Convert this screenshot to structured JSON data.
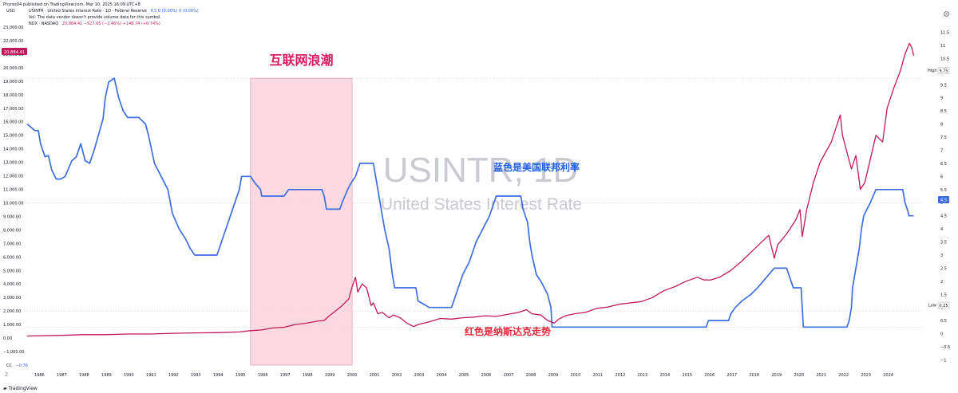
{
  "header": {
    "publisher": "Phyres04 published on TradingView.com, Mar 10, 2025 16:09 UTC+8"
  },
  "legend": {
    "currency": "USD",
    "usintr_title": "USINTR · United States Interest Rate · 1D · Federal Reserve",
    "usintr_values": "4.5  0 (0.00%)  0 (0.00%)",
    "vol_note": "Vol: The data vendor doesn't provide volume data for this symbol.",
    "ndx_title": "NDX · NASDAQ",
    "ndx_values": "20,884.41  −527.05 (−2.46%)  +148.74 (+0.74%)"
  },
  "cc_label": "CC",
  "cc_value": "−0.76",
  "tz_label": "Z",
  "footer_brand": "TradingView",
  "watermark": {
    "symbol": "USINTR, 1D",
    "description": "United States Interest Rate"
  },
  "annotations": {
    "bubble": "互联网浪潮",
    "blue_note": "蓝色是美国联邦利率",
    "red_note": "红色是纳斯达克走势"
  },
  "price_tags": {
    "ndx_last": "20,884.41",
    "high_label": "High",
    "high_value": "9.75",
    "rate_last": "4.5",
    "low_label": "Low",
    "low_value": "0.25"
  },
  "colors": {
    "rate": "#3d6fe0",
    "ndx": "#c2185b",
    "bubble_fill": "#f9d4da",
    "bubble_text": "#d81b60",
    "blue_note": "#1f5fe0",
    "red_note": "#e0283a",
    "watermark": "#c9cbd1"
  },
  "chart_data": {
    "type": "line",
    "x_range": [
      1985.5,
      2025.6
    ],
    "x_ticks": [
      1986,
      1987,
      1988,
      1989,
      1990,
      1991,
      1992,
      1993,
      1994,
      1995,
      1996,
      1997,
      1998,
      1999,
      2000,
      2001,
      2002,
      2003,
      2004,
      2005,
      2006,
      2007,
      2008,
      2009,
      2010,
      2011,
      2012,
      2013,
      2014,
      2015,
      2016,
      2017,
      2018,
      2019,
      2020,
      2021,
      2022,
      2023,
      2024
    ],
    "left_axis": {
      "range": [
        -2000,
        23000
      ],
      "ticks": [
        23000,
        22000,
        21000,
        20000,
        19000,
        18000,
        17000,
        16000,
        15000,
        14000,
        13000,
        12000,
        11000,
        10000,
        9000,
        8000,
        7000,
        6000,
        5000,
        4000,
        3000,
        2000,
        1000,
        0,
        -1000
      ],
      "tick_labels": [
        "23,000.00",
        "22,000.00",
        "21,000.00",
        "20,000.00",
        "19,000.00",
        "18,000.00",
        "17,000.00",
        "16,000.00",
        "15,000.00",
        "14,000.00",
        "13,000.00",
        "12,000.00",
        "11,000.00",
        "10,000.00",
        "9,000.00",
        "8,000.00",
        "7,000.00",
        "6,000.00",
        "5,000.00",
        "4,000.00",
        "3,000.00",
        "2,000.00",
        "1,000.00",
        "0.00",
        "−1,000.00"
      ]
    },
    "right_axis": {
      "range": [
        -1.2,
        11.7
      ],
      "ticks": [
        11.5,
        11,
        10.5,
        10,
        9.5,
        9,
        8.5,
        8,
        7.5,
        7,
        6.5,
        6,
        5.5,
        5,
        4.5,
        4,
        3.5,
        3,
        2.5,
        2,
        1.5,
        1,
        0.5,
        0,
        -0.5,
        -1
      ],
      "tick_labels": [
        "11.5",
        "11",
        "10.5",
        "10",
        "9.5",
        "9",
        "8.5",
        "8",
        "7.5",
        "7",
        "6.5",
        "6",
        "5.5",
        "5",
        "4.5",
        "4",
        "3.5",
        "3",
        "2.5",
        "2",
        "1.5",
        "1",
        "0.5",
        "0",
        "−0.5",
        "−1"
      ]
    },
    "bubble_period": [
      1995.5,
      2000.05
    ],
    "series": [
      {
        "name": "USINTR",
        "axis": "right",
        "points": [
          [
            1985.5,
            8.0
          ],
          [
            1985.85,
            7.75
          ],
          [
            1986.0,
            7.75
          ],
          [
            1986.1,
            7.25
          ],
          [
            1986.3,
            6.75
          ],
          [
            1986.45,
            6.8
          ],
          [
            1986.6,
            6.25
          ],
          [
            1986.8,
            5.9
          ],
          [
            1987.0,
            5.9
          ],
          [
            1987.2,
            6.0
          ],
          [
            1987.5,
            6.6
          ],
          [
            1987.7,
            6.75
          ],
          [
            1987.9,
            7.25
          ],
          [
            1988.1,
            6.6
          ],
          [
            1988.3,
            6.5
          ],
          [
            1988.5,
            7.0
          ],
          [
            1988.7,
            7.6
          ],
          [
            1988.9,
            8.2
          ],
          [
            1989.0,
            9.0
          ],
          [
            1989.15,
            9.6
          ],
          [
            1989.4,
            9.75
          ],
          [
            1989.6,
            9.0
          ],
          [
            1989.8,
            8.5
          ],
          [
            1990.0,
            8.25
          ],
          [
            1990.5,
            8.25
          ],
          [
            1990.8,
            8.0
          ],
          [
            1990.95,
            7.5
          ],
          [
            1991.2,
            6.5
          ],
          [
            1991.5,
            6.0
          ],
          [
            1991.8,
            5.5
          ],
          [
            1992.0,
            4.6
          ],
          [
            1992.3,
            4.0
          ],
          [
            1992.6,
            3.6
          ],
          [
            1992.8,
            3.25
          ],
          [
            1993.0,
            3.0
          ],
          [
            1994.0,
            3.0
          ],
          [
            1994.2,
            3.5
          ],
          [
            1994.4,
            4.0
          ],
          [
            1994.6,
            4.5
          ],
          [
            1994.8,
            5.0
          ],
          [
            1995.0,
            5.5
          ],
          [
            1995.1,
            6.0
          ],
          [
            1995.5,
            6.0
          ],
          [
            1995.7,
            5.75
          ],
          [
            1995.95,
            5.5
          ],
          [
            1996.0,
            5.25
          ],
          [
            1997.0,
            5.25
          ],
          [
            1997.2,
            5.5
          ],
          [
            1998.7,
            5.5
          ],
          [
            1998.8,
            5.25
          ],
          [
            1998.9,
            4.75
          ],
          [
            1999.5,
            4.75
          ],
          [
            1999.6,
            5.0
          ],
          [
            1999.85,
            5.5
          ],
          [
            2000.0,
            5.75
          ],
          [
            2000.2,
            6.0
          ],
          [
            2000.4,
            6.5
          ],
          [
            2001.0,
            6.5
          ],
          [
            2001.1,
            6.0
          ],
          [
            2001.3,
            5.0
          ],
          [
            2001.5,
            4.0
          ],
          [
            2001.7,
            3.25
          ],
          [
            2001.85,
            2.25
          ],
          [
            2001.95,
            1.75
          ],
          [
            2002.9,
            1.75
          ],
          [
            2003.0,
            1.25
          ],
          [
            2003.5,
            1.0
          ],
          [
            2004.5,
            1.0
          ],
          [
            2004.6,
            1.25
          ],
          [
            2004.8,
            1.75
          ],
          [
            2005.0,
            2.25
          ],
          [
            2005.3,
            2.75
          ],
          [
            2005.6,
            3.5
          ],
          [
            2005.9,
            4.0
          ],
          [
            2006.2,
            4.5
          ],
          [
            2006.5,
            5.25
          ],
          [
            2007.6,
            5.25
          ],
          [
            2007.7,
            4.75
          ],
          [
            2007.9,
            4.25
          ],
          [
            2008.0,
            3.5
          ],
          [
            2008.1,
            3.0
          ],
          [
            2008.3,
            2.25
          ],
          [
            2008.5,
            2.0
          ],
          [
            2008.8,
            1.5
          ],
          [
            2008.95,
            1.0
          ],
          [
            2009.0,
            0.25
          ],
          [
            2015.9,
            0.25
          ],
          [
            2016.0,
            0.5
          ],
          [
            2016.9,
            0.5
          ],
          [
            2017.0,
            0.75
          ],
          [
            2017.2,
            1.0
          ],
          [
            2017.5,
            1.25
          ],
          [
            2017.9,
            1.5
          ],
          [
            2018.2,
            1.75
          ],
          [
            2018.45,
            2.0
          ],
          [
            2018.7,
            2.25
          ],
          [
            2018.95,
            2.5
          ],
          [
            2019.5,
            2.5
          ],
          [
            2019.6,
            2.25
          ],
          [
            2019.7,
            2.0
          ],
          [
            2019.8,
            1.75
          ],
          [
            2020.15,
            1.75
          ],
          [
            2020.2,
            1.0
          ],
          [
            2020.25,
            0.25
          ],
          [
            2022.2,
            0.25
          ],
          [
            2022.3,
            0.5
          ],
          [
            2022.4,
            1.0
          ],
          [
            2022.45,
            1.75
          ],
          [
            2022.6,
            2.5
          ],
          [
            2022.75,
            3.25
          ],
          [
            2022.85,
            4.0
          ],
          [
            2022.95,
            4.5
          ],
          [
            2023.1,
            4.75
          ],
          [
            2023.25,
            5.0
          ],
          [
            2023.5,
            5.5
          ],
          [
            2024.7,
            5.5
          ],
          [
            2024.8,
            5.0
          ],
          [
            2024.9,
            4.75
          ],
          [
            2024.98,
            4.5
          ],
          [
            2025.19,
            4.5
          ]
        ]
      },
      {
        "name": "NDX",
        "axis": "left",
        "points": [
          [
            1985.5,
            150
          ],
          [
            1987.0,
            200
          ],
          [
            1988.0,
            250
          ],
          [
            1989.0,
            250
          ],
          [
            1990.0,
            300
          ],
          [
            1991.0,
            300
          ],
          [
            1992.0,
            350
          ],
          [
            1993.0,
            380
          ],
          [
            1994.0,
            400
          ],
          [
            1995.0,
            450
          ],
          [
            1995.5,
            550
          ],
          [
            1996.0,
            600
          ],
          [
            1996.5,
            750
          ],
          [
            1997.0,
            800
          ],
          [
            1997.5,
            1000
          ],
          [
            1998.0,
            1100
          ],
          [
            1998.5,
            1250
          ],
          [
            1998.8,
            1300
          ],
          [
            1999.0,
            1600
          ],
          [
            1999.3,
            2000
          ],
          [
            1999.6,
            2400
          ],
          [
            1999.9,
            2900
          ],
          [
            2000.05,
            3800
          ],
          [
            2000.2,
            4500
          ],
          [
            2000.3,
            3400
          ],
          [
            2000.5,
            4000
          ],
          [
            2000.7,
            3700
          ],
          [
            2000.9,
            2400
          ],
          [
            2001.0,
            2600
          ],
          [
            2001.2,
            1800
          ],
          [
            2001.4,
            1900
          ],
          [
            2001.7,
            1500
          ],
          [
            2001.9,
            1700
          ],
          [
            2002.2,
            1500
          ],
          [
            2002.5,
            1100
          ],
          [
            2002.8,
            850
          ],
          [
            2003.0,
            1000
          ],
          [
            2003.5,
            1200
          ],
          [
            2004.0,
            1450
          ],
          [
            2004.5,
            1400
          ],
          [
            2005.0,
            1500
          ],
          [
            2005.5,
            1550
          ],
          [
            2006.0,
            1650
          ],
          [
            2006.5,
            1600
          ],
          [
            2007.0,
            1750
          ],
          [
            2007.5,
            1900
          ],
          [
            2007.85,
            2100
          ],
          [
            2008.1,
            1800
          ],
          [
            2008.5,
            1700
          ],
          [
            2008.8,
            1300
          ],
          [
            2009.1,
            1100
          ],
          [
            2009.3,
            1400
          ],
          [
            2009.6,
            1650
          ],
          [
            2010.0,
            1800
          ],
          [
            2010.5,
            1900
          ],
          [
            2011.0,
            2200
          ],
          [
            2011.5,
            2300
          ],
          [
            2012.0,
            2500
          ],
          [
            2012.5,
            2600
          ],
          [
            2013.0,
            2700
          ],
          [
            2013.5,
            3000
          ],
          [
            2014.0,
            3500
          ],
          [
            2014.5,
            3800
          ],
          [
            2015.0,
            4200
          ],
          [
            2015.5,
            4500
          ],
          [
            2015.8,
            4300
          ],
          [
            2016.1,
            4300
          ],
          [
            2016.5,
            4500
          ],
          [
            2017.0,
            5000
          ],
          [
            2017.5,
            5700
          ],
          [
            2018.0,
            6500
          ],
          [
            2018.7,
            7600
          ],
          [
            2018.95,
            5900
          ],
          [
            2019.1,
            6900
          ],
          [
            2019.5,
            7700
          ],
          [
            2019.9,
            8700
          ],
          [
            2020.1,
            9500
          ],
          [
            2020.2,
            7500
          ],
          [
            2020.4,
            9500
          ],
          [
            2020.7,
            11500
          ],
          [
            2021.0,
            13000
          ],
          [
            2021.5,
            14500
          ],
          [
            2021.9,
            16500
          ],
          [
            2022.0,
            15000
          ],
          [
            2022.4,
            12500
          ],
          [
            2022.6,
            13500
          ],
          [
            2022.8,
            11000
          ],
          [
            2023.0,
            11500
          ],
          [
            2023.5,
            15000
          ],
          [
            2023.8,
            14500
          ],
          [
            2024.0,
            17000
          ],
          [
            2024.3,
            18500
          ],
          [
            2024.6,
            19800
          ],
          [
            2024.8,
            21000
          ],
          [
            2025.0,
            21800
          ],
          [
            2025.1,
            21500
          ],
          [
            2025.19,
            20884
          ]
        ]
      }
    ]
  }
}
